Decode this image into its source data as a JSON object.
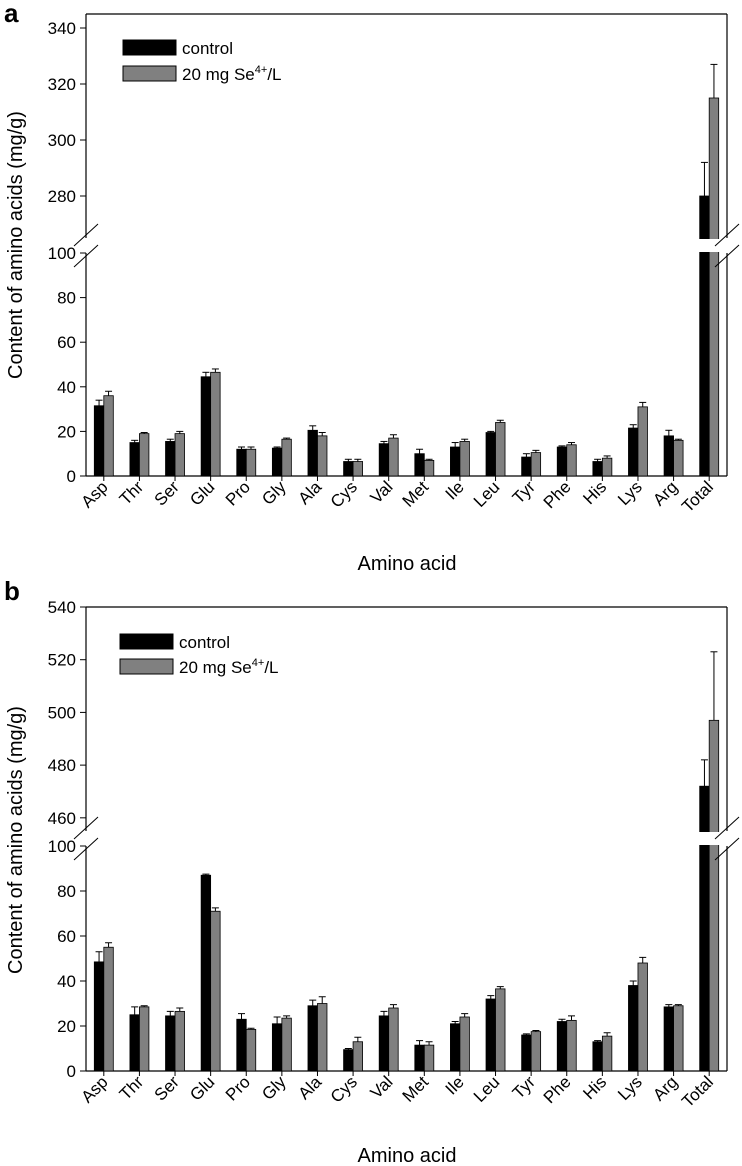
{
  "chart_data": [
    {
      "type": "bar",
      "panel_label": "a",
      "categories": [
        "Asp",
        "Thr",
        "Ser",
        "Glu",
        "Pro",
        "Gly",
        "Ala",
        "Cys",
        "Val",
        "Met",
        "Ile",
        "Leu",
        "Tyr",
        "Phe",
        "His",
        "Lys",
        "Arg",
        "Total"
      ],
      "series": [
        {
          "name": "control",
          "color": "#000000",
          "values": [
            31.5,
            15,
            15.5,
            44.5,
            12,
            12.5,
            20.5,
            6.5,
            14.5,
            10,
            13,
            19.5,
            8.5,
            13,
            6.5,
            21.5,
            18,
            280
          ],
          "errors": [
            2.5,
            1,
            1,
            2,
            1,
            0.5,
            2,
            1,
            1,
            2,
            2,
            0.5,
            1.5,
            0.5,
            1,
            1.5,
            2.5,
            12
          ]
        },
        {
          "name": "20 mg Se4+/L",
          "color": "#808080",
          "values": [
            36,
            19,
            19,
            46.5,
            12,
            16.5,
            18,
            6.5,
            17,
            7,
            15.5,
            24,
            10.5,
            14,
            8,
            31,
            16,
            315
          ],
          "errors": [
            2,
            0.5,
            1,
            1.5,
            1,
            0.5,
            1.5,
            1,
            1.5,
            0.5,
            1,
            1,
            1,
            1,
            1,
            2,
            0.5,
            12
          ]
        }
      ],
      "lower_axis": {
        "min": 0,
        "max": 100,
        "ticks": [
          0,
          20,
          40,
          60,
          80,
          100
        ]
      },
      "upper_axis": {
        "min": 265,
        "max": 345,
        "ticks": [
          280,
          300,
          320,
          340
        ]
      },
      "ylabel": "Content of amino acids (mg/g)",
      "xlabel": "Amino acid",
      "legend": {
        "placement": "top-left",
        "entries": [
          "control",
          "20 mg Se"
        ],
        "superscript": "4+",
        "suffix": "/L"
      }
    },
    {
      "type": "bar",
      "panel_label": "b",
      "categories": [
        "Asp",
        "Thr",
        "Ser",
        "Glu",
        "Pro",
        "Gly",
        "Ala",
        "Cys",
        "Val",
        "Met",
        "Ile",
        "Leu",
        "Tyr",
        "Phe",
        "His",
        "Lys",
        "Arg",
        "Total"
      ],
      "series": [
        {
          "name": "control",
          "color": "#000000",
          "values": [
            48.5,
            25,
            24.5,
            87,
            23,
            21,
            29,
            9.5,
            24.5,
            11.5,
            21,
            32,
            16,
            22,
            13,
            38,
            28.5,
            472
          ],
          "errors": [
            4.5,
            3.5,
            2,
            0.5,
            2.5,
            3,
            2.5,
            0.5,
            2,
            2,
            1,
            1.5,
            0.5,
            1,
            0.5,
            2,
            1,
            10
          ]
        },
        {
          "name": "20 mg Se4+/L",
          "color": "#808080",
          "values": [
            55,
            28.5,
            26.5,
            71,
            18.5,
            23.5,
            30,
            13,
            28,
            11.5,
            24,
            36.5,
            17.5,
            22.5,
            15.5,
            48,
            29,
            497
          ],
          "errors": [
            2,
            0.5,
            1.5,
            1.5,
            0.5,
            1,
            3,
            2,
            1.5,
            1.5,
            1.5,
            1,
            0.5,
            2,
            1.5,
            2.5,
            0.5,
            26
          ]
        }
      ],
      "lower_axis": {
        "min": 0,
        "max": 100,
        "ticks": [
          0,
          20,
          40,
          60,
          80,
          100
        ]
      },
      "upper_axis": {
        "min": 455,
        "max": 540,
        "ticks": [
          460,
          480,
          500,
          520,
          540
        ]
      },
      "ylabel": "Content of amino acids (mg/g)",
      "xlabel": "Amino acid",
      "legend": {
        "placement": "top-left",
        "entries": [
          "control",
          "20 mg Se"
        ],
        "superscript": "4+",
        "suffix": "/L"
      }
    }
  ]
}
